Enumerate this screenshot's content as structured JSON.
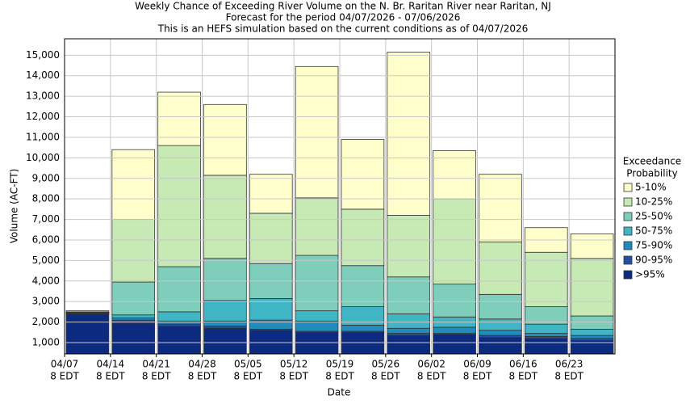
{
  "chart_data": {
    "type": "stacked_bar",
    "title": "Weekly Chance of Exceeding River Volume on the N. Br. Raritan River near Raritan, NJ",
    "subtitle": [
      "Forecast for the period 04/07/2026 - 07/06/2026",
      "This is an HEFS simulation based on the current conditions as of 04/07/2026"
    ],
    "x_label": "Date",
    "y_label": "Volume (AC-FT)",
    "categories": [
      "04/07",
      "04/14",
      "04/21",
      "04/28",
      "05/05",
      "05/12",
      "05/19",
      "05/26",
      "06/02",
      "06/09",
      "06/16",
      "06/23"
    ],
    "category_sublabel": "8 EDT",
    "legend_title": [
      "Exceedance",
      "Probability"
    ],
    "series": [
      {
        "name": ">95%",
        "color": "#0c2a80",
        "values": [
          2380,
          1950,
          1800,
          1700,
          1600,
          1500,
          1500,
          1350,
          1400,
          1250,
          1200,
          1100
        ]
      },
      {
        "name": "90-95%",
        "color": "#23509f",
        "values": [
          20,
          150,
          100,
          100,
          50,
          50,
          50,
          100,
          50,
          100,
          100,
          100
        ]
      },
      {
        "name": "75-90%",
        "color": "#1f8cbd",
        "values": [
          20,
          100,
          150,
          250,
          450,
          500,
          300,
          250,
          300,
          250,
          150,
          150
        ]
      },
      {
        "name": "50-75%",
        "color": "#40b5c6",
        "values": [
          20,
          150,
          450,
          1000,
          1050,
          500,
          900,
          700,
          500,
          550,
          450,
          300
        ]
      },
      {
        "name": "25-50%",
        "color": "#7fcdbb",
        "values": [
          30,
          1600,
          2200,
          2050,
          1700,
          2700,
          2000,
          1800,
          1600,
          1200,
          850,
          650
        ]
      },
      {
        "name": "10-25%",
        "color": "#c7e9b4",
        "values": [
          30,
          3050,
          5900,
          4050,
          2450,
          2800,
          2750,
          3000,
          4150,
          2550,
          2650,
          2800
        ]
      },
      {
        "name": "5-10%",
        "color": "#ffffcc",
        "values": [
          50,
          3400,
          2600,
          3450,
          1900,
          6400,
          3400,
          7950,
          2350,
          3300,
          1200,
          1200
        ]
      }
    ],
    "ylim": [
      450,
      15800
    ],
    "yticks": [
      {
        "value": 1000,
        "label": "1,000"
      },
      {
        "value": 2000,
        "label": "2,000"
      },
      {
        "value": 3000,
        "label": "3,000"
      },
      {
        "value": 4000,
        "label": "4,000"
      },
      {
        "value": 5000,
        "label": "5,000"
      },
      {
        "value": 6000,
        "label": "6,000"
      },
      {
        "value": 7000,
        "label": "7,000"
      },
      {
        "value": 8000,
        "label": "8,000"
      },
      {
        "value": 9000,
        "label": "9,000"
      },
      {
        "value": 10000,
        "label": "10,000"
      },
      {
        "value": 11000,
        "label": "11,000"
      },
      {
        "value": 12000,
        "label": "12,000"
      },
      {
        "value": 13000,
        "label": "13,000"
      },
      {
        "value": 14000,
        "label": "14,000"
      },
      {
        "value": 15000,
        "label": "15,000"
      }
    ],
    "grid": true
  }
}
